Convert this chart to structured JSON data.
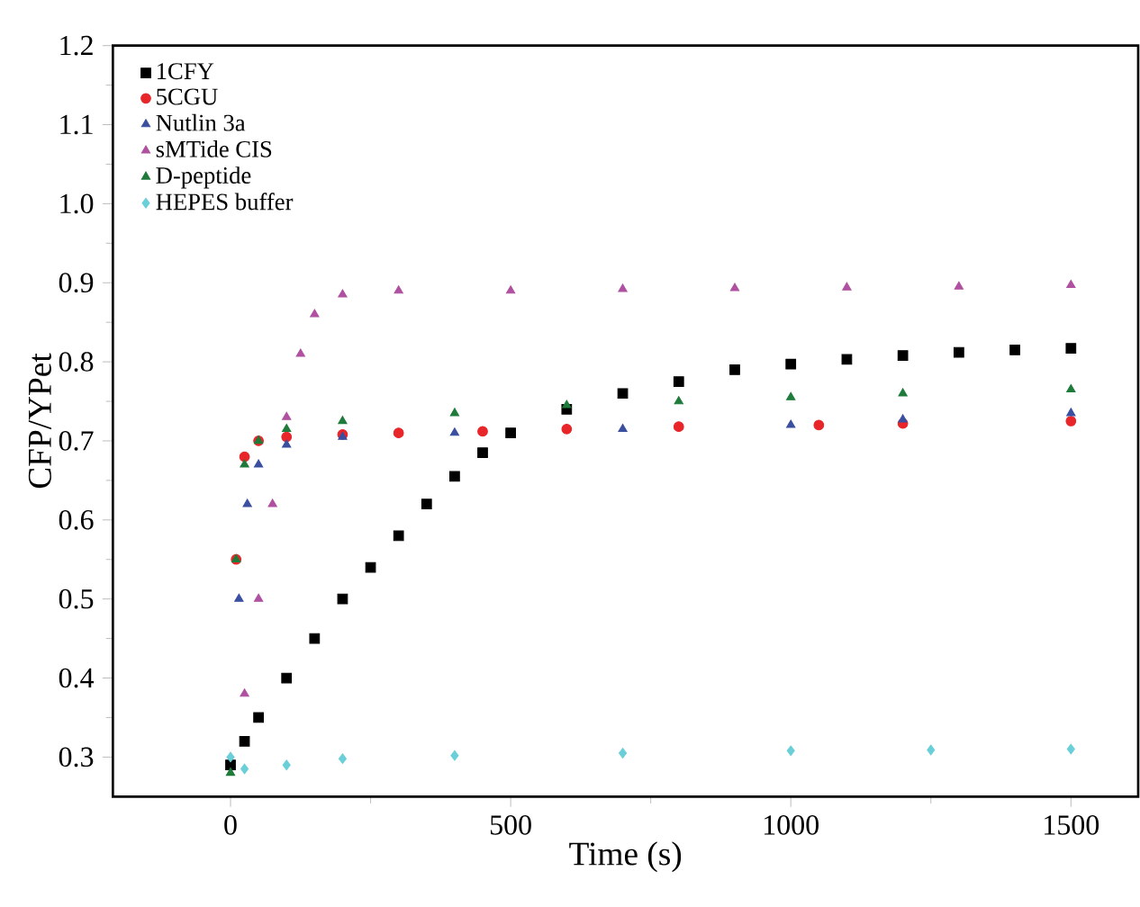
{
  "chart_data": {
    "type": "scatter",
    "xlabel": "Time (s)",
    "ylabel": "CFP/YPet",
    "xlim": [
      -210,
      1620
    ],
    "ylim": [
      0.25,
      1.2
    ],
    "xticks": [
      0,
      500,
      1000,
      1500
    ],
    "yticks": [
      0.3,
      0.4,
      0.5,
      0.6,
      0.7,
      0.8,
      0.9,
      {
        "value": 1,
        "label": "1.0"
      },
      1.1,
      1.2
    ],
    "legend": "top left",
    "grid": false,
    "series": [
      {
        "name": "1CFY",
        "color": "#000000",
        "marker": "square",
        "x": [
          0,
          25,
          50,
          100,
          150,
          200,
          250,
          300,
          350,
          400,
          450,
          500,
          600,
          700,
          800,
          900,
          1000,
          1100,
          1200,
          1300,
          1400,
          1500
        ],
        "values": [
          0.29,
          0.32,
          0.35,
          0.4,
          0.45,
          0.5,
          0.54,
          0.58,
          0.62,
          0.655,
          0.685,
          0.71,
          0.74,
          0.76,
          0.775,
          0.79,
          0.797,
          0.803,
          0.808,
          0.812,
          0.815,
          0.817
        ]
      },
      {
        "name": "5CGU",
        "color": "#e8262a",
        "marker": "circle",
        "x": [
          10,
          25,
          50,
          100,
          200,
          300,
          450,
          600,
          800,
          1050,
          1200,
          1500
        ],
        "values": [
          0.55,
          0.68,
          0.7,
          0.705,
          0.708,
          0.71,
          0.712,
          0.715,
          0.718,
          0.72,
          0.722,
          0.725
        ]
      },
      {
        "name": "Nutlin 3a",
        "color": "#3a4fa0",
        "marker": "triangle",
        "x": [
          15,
          30,
          50,
          100,
          200,
          400,
          700,
          1000,
          1200,
          1500
        ],
        "values": [
          0.5,
          0.62,
          0.67,
          0.695,
          0.705,
          0.71,
          0.715,
          0.72,
          0.727,
          0.735
        ]
      },
      {
        "name": "sMTide CIS",
        "color": "#b050a0",
        "marker": "triangle",
        "x": [
          25,
          50,
          75,
          100,
          125,
          150,
          200,
          300,
          500,
          700,
          900,
          1100,
          1300,
          1500
        ],
        "values": [
          0.38,
          0.5,
          0.62,
          0.73,
          0.81,
          0.86,
          0.885,
          0.89,
          0.89,
          0.892,
          0.893,
          0.894,
          0.895,
          0.897
        ]
      },
      {
        "name": "D-peptide",
        "color": "#1e7b3a",
        "marker": "triangle",
        "x": [
          0,
          10,
          25,
          50,
          100,
          200,
          400,
          600,
          800,
          1000,
          1200,
          1500
        ],
        "values": [
          0.28,
          0.55,
          0.67,
          0.7,
          0.715,
          0.725,
          0.735,
          0.745,
          0.75,
          0.755,
          0.76,
          0.765
        ]
      },
      {
        "name": "HEPES buffer",
        "color": "#6acfd8",
        "marker": "diamond",
        "x": [
          0,
          25,
          100,
          200,
          400,
          700,
          1000,
          1250,
          1500
        ],
        "values": [
          0.3,
          0.285,
          0.29,
          0.298,
          0.302,
          0.305,
          0.308,
          0.309,
          0.31
        ]
      }
    ]
  }
}
